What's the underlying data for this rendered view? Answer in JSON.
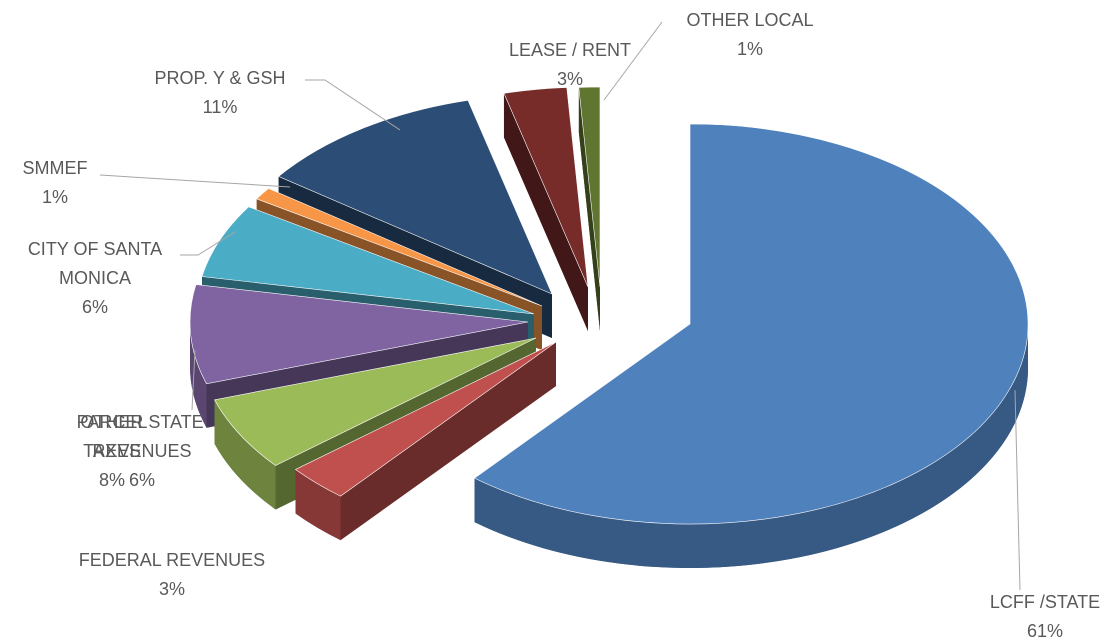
{
  "chart_data": {
    "type": "pie3d",
    "categories": [
      "LCFF /STATE",
      "FEDERAL REVENUES",
      "OTHER STATE REVENUES",
      "PARCEL TAXES",
      "CITY OF SANTA MONICA",
      "SMMEF",
      "PROP. Y & GSH",
      "LEASE / RENT",
      "OTHER LOCAL"
    ],
    "values": [
      61,
      3,
      6,
      8,
      6,
      1,
      11,
      3,
      1
    ],
    "value_labels": [
      "61%",
      "3%",
      "6%",
      "8%",
      "6%",
      "1%",
      "11%",
      "3%",
      "1%"
    ],
    "colors": [
      "#4f81bd",
      "#c0504d",
      "#9bbb59",
      "#8064a2",
      "#4bacc6",
      "#f79646",
      "#2c4d75",
      "#772c2a",
      "#5f7530"
    ]
  }
}
